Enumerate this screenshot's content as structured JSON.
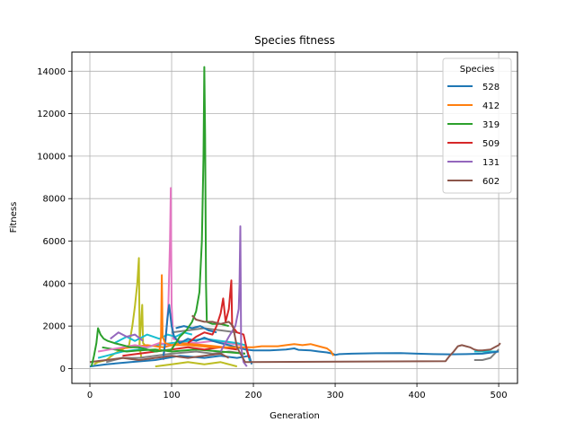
{
  "chart_data": {
    "type": "line",
    "title": "Species fitness",
    "xlabel": "Generation",
    "ylabel": "Fitness",
    "xlim": [
      -22,
      523
    ],
    "ylim": [
      -700,
      14900
    ],
    "xticks": [
      0,
      100,
      200,
      300,
      400,
      500
    ],
    "yticks": [
      0,
      2000,
      4000,
      6000,
      8000,
      10000,
      12000,
      14000
    ],
    "grid": true,
    "legend": {
      "title": "Species",
      "placement": "top-right",
      "entries": [
        "528",
        "412",
        "319",
        "509",
        "131",
        "602"
      ]
    },
    "series": [
      {
        "name": "528",
        "color": "#1f77b4",
        "points": [
          [
            90,
            600
          ],
          [
            92,
            1200
          ],
          [
            95,
            2400
          ],
          [
            97,
            3000
          ],
          [
            100,
            2000
          ],
          [
            103,
            1500
          ],
          [
            110,
            1200
          ],
          [
            120,
            1400
          ],
          [
            130,
            1300
          ],
          [
            140,
            1450
          ],
          [
            150,
            1300
          ],
          [
            160,
            1200
          ],
          [
            170,
            1100
          ],
          [
            180,
            1000
          ],
          [
            190,
            900
          ],
          [
            200,
            850
          ],
          [
            220,
            850
          ],
          [
            240,
            900
          ],
          [
            250,
            950
          ],
          [
            255,
            880
          ],
          [
            270,
            850
          ],
          [
            280,
            800
          ],
          [
            290,
            760
          ],
          [
            297,
            700
          ],
          [
            300,
            640
          ],
          [
            305,
            680
          ],
          [
            320,
            700
          ],
          [
            350,
            720
          ],
          [
            380,
            730
          ],
          [
            400,
            700
          ],
          [
            420,
            680
          ],
          [
            440,
            670
          ],
          [
            460,
            680
          ],
          [
            480,
            700
          ],
          [
            500,
            800
          ]
        ]
      },
      {
        "name": "412",
        "color": "#ff7f0e",
        "points": [
          [
            85,
            800
          ],
          [
            87,
            1500
          ],
          [
            88,
            4400
          ],
          [
            89,
            1500
          ],
          [
            92,
            1200
          ],
          [
            100,
            1100
          ],
          [
            120,
            1100
          ],
          [
            150,
            1000
          ],
          [
            180,
            1000
          ],
          [
            200,
            1000
          ],
          [
            210,
            1050
          ],
          [
            230,
            1050
          ],
          [
            240,
            1100
          ],
          [
            250,
            1150
          ],
          [
            260,
            1100
          ],
          [
            270,
            1150
          ],
          [
            280,
            1050
          ],
          [
            290,
            950
          ],
          [
            295,
            800
          ],
          [
            298,
            600
          ]
        ]
      },
      {
        "name": "319",
        "color": "#2ca02c",
        "points": [
          [
            2,
            100
          ],
          [
            5,
            600
          ],
          [
            8,
            1200
          ],
          [
            10,
            1900
          ],
          [
            13,
            1600
          ],
          [
            17,
            1400
          ],
          [
            22,
            1300
          ],
          [
            30,
            1200
          ],
          [
            40,
            1100
          ],
          [
            50,
            1000
          ],
          [
            60,
            1000
          ],
          [
            70,
            900
          ],
          [
            80,
            800
          ],
          [
            100,
            900
          ],
          [
            110,
            1500
          ],
          [
            118,
            1800
          ],
          [
            125,
            2200
          ],
          [
            130,
            2700
          ],
          [
            134,
            3600
          ],
          [
            137,
            6000
          ],
          [
            139,
            10000
          ],
          [
            140,
            14200
          ],
          [
            141,
            11000
          ],
          [
            142,
            4000
          ],
          [
            143,
            2200
          ],
          [
            150,
            2100
          ],
          [
            160,
            2100
          ],
          [
            170,
            2000
          ]
        ]
      },
      {
        "name": "509",
        "color": "#d62728",
        "points": [
          [
            120,
            1200
          ],
          [
            130,
            1500
          ],
          [
            140,
            1700
          ],
          [
            150,
            1600
          ],
          [
            155,
            2000
          ],
          [
            160,
            2600
          ],
          [
            163,
            3300
          ],
          [
            166,
            2200
          ],
          [
            170,
            2800
          ],
          [
            173,
            4150
          ],
          [
            174,
            2000
          ],
          [
            180,
            1700
          ],
          [
            188,
            1600
          ],
          [
            192,
            900
          ],
          [
            195,
            500
          ]
        ]
      },
      {
        "name": "131",
        "color": "#9467bd",
        "points": [
          [
            160,
            800
          ],
          [
            170,
            1500
          ],
          [
            178,
            2000
          ],
          [
            182,
            2800
          ],
          [
            183,
            4000
          ],
          [
            184,
            6700
          ],
          [
            185,
            1000
          ],
          [
            188,
            300
          ],
          [
            192,
            100
          ]
        ]
      },
      {
        "name": "602",
        "color": "#8c564b",
        "points": [
          [
            125,
            2500
          ],
          [
            130,
            2300
          ],
          [
            140,
            2200
          ],
          [
            150,
            2200
          ],
          [
            160,
            2100
          ],
          [
            170,
            2200
          ],
          [
            175,
            2000
          ],
          [
            180,
            1000
          ],
          [
            190,
            300
          ],
          [
            435,
            350
          ],
          [
            440,
            600
          ],
          [
            445,
            800
          ],
          [
            450,
            1050
          ],
          [
            455,
            1100
          ],
          [
            460,
            1050
          ],
          [
            465,
            1000
          ],
          [
            470,
            900
          ],
          [
            475,
            850
          ],
          [
            480,
            850
          ],
          [
            490,
            900
          ],
          [
            495,
            1000
          ],
          [
            500,
            1100
          ],
          [
            502,
            1200
          ]
        ]
      },
      {
        "color": "#bcbd22",
        "points": [
          [
            5,
            200
          ],
          [
            10,
            300
          ],
          [
            20,
            400
          ],
          [
            30,
            700
          ],
          [
            40,
            900
          ],
          [
            48,
            1100
          ],
          [
            52,
            2000
          ],
          [
            55,
            2900
          ],
          [
            58,
            4000
          ],
          [
            60,
            5200
          ],
          [
            61,
            1000
          ],
          [
            63,
            500
          ]
        ]
      },
      {
        "color": "#e377c2",
        "points": [
          [
            90,
            400
          ],
          [
            93,
            1500
          ],
          [
            96,
            3000
          ],
          [
            98,
            6000
          ],
          [
            99,
            8500
          ],
          [
            100,
            3000
          ],
          [
            102,
            1400
          ],
          [
            110,
            1300
          ],
          [
            130,
            1200
          ],
          [
            150,
            1300
          ],
          [
            170,
            1200
          ],
          [
            185,
            1100
          ]
        ]
      },
      {
        "color": "#bcbd22",
        "points": [
          [
            60,
            800
          ],
          [
            62,
            1800
          ],
          [
            64,
            3000
          ],
          [
            65,
            1200
          ],
          [
            70,
            1000
          ]
        ]
      },
      {
        "color": "#17becf",
        "points": [
          [
            10,
            500
          ],
          [
            20,
            600
          ],
          [
            40,
            800
          ],
          [
            60,
            900
          ],
          [
            80,
            1100
          ],
          [
            100,
            1200
          ],
          [
            120,
            1300
          ],
          [
            140,
            1400
          ],
          [
            160,
            1300
          ],
          [
            180,
            1200
          ],
          [
            190,
            1100
          ],
          [
            196,
            300
          ]
        ]
      },
      {
        "color": "#7f7f7f",
        "points": [
          [
            20,
            300
          ],
          [
            40,
            500
          ],
          [
            60,
            500
          ],
          [
            80,
            600
          ],
          [
            100,
            700
          ],
          [
            130,
            800
          ],
          [
            150,
            700
          ],
          [
            170,
            800
          ],
          [
            190,
            700
          ]
        ]
      },
      {
        "color": "#17becf",
        "points": [
          [
            30,
            1200
          ],
          [
            45,
            1500
          ],
          [
            55,
            1300
          ],
          [
            70,
            1600
          ],
          [
            85,
            1400
          ],
          [
            95,
            1600
          ],
          [
            105,
            1500
          ],
          [
            115,
            1700
          ],
          [
            125,
            1600
          ]
        ]
      },
      {
        "color": "#1f77b4",
        "points": [
          [
            0,
            100
          ],
          [
            20,
            200
          ],
          [
            50,
            300
          ],
          [
            80,
            400
          ],
          [
            110,
            600
          ],
          [
            140,
            500
          ],
          [
            160,
            600
          ],
          [
            180,
            500
          ],
          [
            195,
            600
          ],
          [
            198,
            200
          ]
        ]
      },
      {
        "color": "#ff7f0e",
        "points": [
          [
            30,
            900
          ],
          [
            50,
            1000
          ],
          [
            70,
            1100
          ],
          [
            90,
            1000
          ],
          [
            110,
            1200
          ],
          [
            140,
            1100
          ],
          [
            165,
            1000
          ],
          [
            180,
            900
          ]
        ]
      },
      {
        "color": "#2ca02c",
        "points": [
          [
            15,
            1000
          ],
          [
            30,
            900
          ],
          [
            45,
            800
          ],
          [
            60,
            850
          ],
          [
            80,
            900
          ],
          [
            100,
            800
          ],
          [
            130,
            900
          ],
          [
            160,
            800
          ],
          [
            190,
            700
          ]
        ]
      },
      {
        "color": "#d62728",
        "points": [
          [
            40,
            600
          ],
          [
            60,
            700
          ],
          [
            80,
            800
          ],
          [
            100,
            900
          ],
          [
            120,
            1000
          ],
          [
            140,
            900
          ],
          [
            160,
            1000
          ],
          [
            180,
            900
          ]
        ]
      },
      {
        "color": "#9467bd",
        "points": [
          [
            25,
            1400
          ],
          [
            35,
            1700
          ],
          [
            45,
            1500
          ],
          [
            55,
            1600
          ],
          [
            65,
            1300
          ]
        ]
      },
      {
        "color": "#8c564b",
        "points": [
          [
            0,
            300
          ],
          [
            20,
            400
          ],
          [
            40,
            500
          ],
          [
            60,
            400
          ],
          [
            80,
            500
          ],
          [
            100,
            600
          ],
          [
            120,
            500
          ],
          [
            140,
            600
          ],
          [
            160,
            700
          ],
          [
            170,
            500
          ]
        ]
      },
      {
        "color": "#e377c2",
        "points": [
          [
            10,
            800
          ],
          [
            25,
            900
          ],
          [
            40,
            1000
          ],
          [
            55,
            1100
          ],
          [
            70,
            1000
          ],
          [
            85,
            1200
          ],
          [
            100,
            1100
          ]
        ]
      },
      {
        "color": "#7f7f7f",
        "points": [
          [
            100,
            1700
          ],
          [
            120,
            1800
          ],
          [
            140,
            1900
          ],
          [
            160,
            1800
          ],
          [
            180,
            1700
          ]
        ]
      },
      {
        "color": "#bcbd22",
        "points": [
          [
            80,
            100
          ],
          [
            100,
            200
          ],
          [
            120,
            300
          ],
          [
            140,
            200
          ],
          [
            160,
            300
          ],
          [
            180,
            100
          ]
        ]
      },
      {
        "color": "#17becf",
        "points": [
          [
            470,
            800
          ],
          [
            480,
            800
          ],
          [
            490,
            800
          ],
          [
            500,
            800
          ]
        ]
      },
      {
        "color": "#7f7f7f",
        "points": [
          [
            470,
            400
          ],
          [
            480,
            400
          ],
          [
            490,
            500
          ],
          [
            495,
            700
          ],
          [
            500,
            900
          ]
        ]
      },
      {
        "color": "#1f77b4",
        "points": [
          [
            105,
            1900
          ],
          [
            115,
            2000
          ],
          [
            125,
            1900
          ],
          [
            135,
            2000
          ],
          [
            145,
            1800
          ],
          [
            155,
            1700
          ]
        ]
      }
    ]
  }
}
